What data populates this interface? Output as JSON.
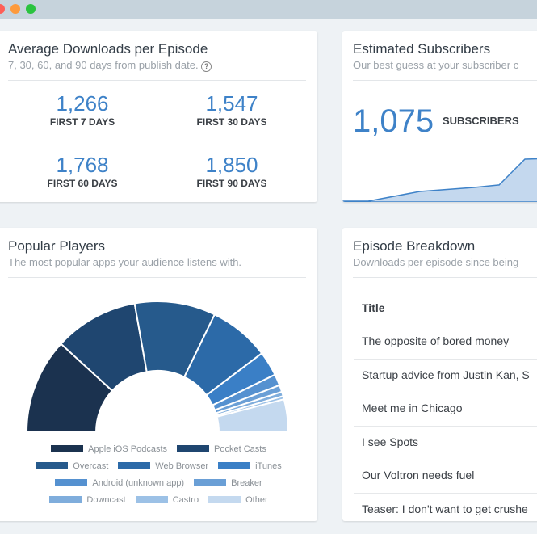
{
  "window": {
    "controls": [
      "close",
      "minimize",
      "maximize"
    ],
    "colors": {
      "close": "#fe5f57",
      "minimize": "#fd9a3c",
      "maximize": "#2ac33f"
    }
  },
  "avg_downloads": {
    "title": "Average Downloads per Episode",
    "subtitle": "7, 30, 60, and 90 days from publish date.",
    "help_icon": "question-circle-icon",
    "stats": [
      {
        "value": "1,266",
        "label": "FIRST 7 DAYS"
      },
      {
        "value": "1,547",
        "label": "FIRST 30 DAYS"
      },
      {
        "value": "1,768",
        "label": "FIRST 60 DAYS"
      },
      {
        "value": "1,850",
        "label": "FIRST 90 DAYS"
      }
    ]
  },
  "subscribers": {
    "title": "Estimated Subscribers",
    "subtitle": "Our best guess at your subscriber c",
    "value": "1,075",
    "label": "SUBSCRIBERS",
    "trend": [
      0,
      0,
      12,
      17,
      20,
      20,
      52,
      53
    ],
    "color": "#3e82c8"
  },
  "players": {
    "title": "Popular Players",
    "subtitle": "The most popular apps your audience listens with.",
    "chart_data": {
      "type": "pie",
      "variant": "half-donut",
      "legend": "bottom",
      "series": [
        {
          "name": "Apple iOS Podcasts",
          "value": 23.6,
          "color": "#1b324f"
        },
        {
          "name": "Pocket Casts",
          "value": 20.8,
          "color": "#1f4670"
        },
        {
          "name": "Overcast",
          "value": 20.0,
          "color": "#265a8c"
        },
        {
          "name": "Web Browser",
          "value": 15.0,
          "color": "#2c6aa8"
        },
        {
          "name": "iTunes",
          "value": 6.1,
          "color": "#3a7fc6"
        },
        {
          "name": "Android (unknown app)",
          "value": 2.8,
          "color": "#5591d0"
        },
        {
          "name": "Breaker",
          "value": 1.7,
          "color": "#6a9fd6"
        },
        {
          "name": "Downcast",
          "value": 1.1,
          "color": "#7faddc"
        },
        {
          "name": "Castro",
          "value": 0.8,
          "color": "#9cc1e6"
        },
        {
          "name": "Other",
          "value": 8.1,
          "color": "#c4d9ef"
        }
      ]
    }
  },
  "episodes": {
    "title": "Episode Breakdown",
    "subtitle": "Downloads per episode since being",
    "column": "Title",
    "rows": [
      "The opposite of bored money",
      "Startup advice from Justin Kan, S",
      "Meet me in Chicago",
      "I see Spots",
      "Our Voltron needs fuel",
      "Teaser: I don't want to get crushe"
    ]
  }
}
